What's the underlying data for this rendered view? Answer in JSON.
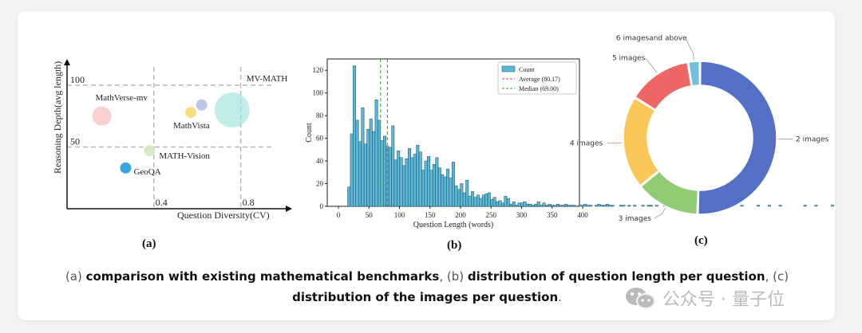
{
  "chart_data": [
    {
      "type": "scatter",
      "panel_label": "(a)",
      "xlabel": "Question Diversity(CV)",
      "ylabel": "Reasoning Depth(avg length)",
      "x_ticks": [
        "0.4",
        "0.8"
      ],
      "y_ticks": [
        "50",
        "100"
      ],
      "points": [
        {
          "name": "MathVerse-mv",
          "x": 0.16,
          "y": 75,
          "color": "#f7c6c7",
          "opacity": 0.8
        },
        {
          "name": "MathVista",
          "x": 0.57,
          "y": 78,
          "color": "#f6d96b",
          "opacity": 0.85
        },
        {
          "name": "",
          "x": 0.62,
          "y": 84,
          "color": "#b7c0e8",
          "opacity": 0.9
        },
        {
          "name": "MV-MATH",
          "x": 0.76,
          "y": 80,
          "color": "#9fe3dc",
          "opacity": 0.65
        },
        {
          "name": "MATH-Vision",
          "x": 0.38,
          "y": 47,
          "color": "#cfe9bf",
          "opacity": 0.9
        },
        {
          "name": "GeoQA",
          "x": 0.27,
          "y": 33,
          "color": "#2aa1dc",
          "opacity": 0.95
        }
      ]
    },
    {
      "type": "bar",
      "panel_label": "(b)",
      "xlabel": "Question Length (words)",
      "ylabel": "Count",
      "xlim": [
        0,
        400
      ],
      "ylim": [
        0,
        130
      ],
      "x_ticks": [
        "0",
        "50",
        "100",
        "150",
        "200",
        "250",
        "300",
        "350",
        "400"
      ],
      "y_ticks": [
        "0",
        "20",
        "40",
        "60",
        "80",
        "100",
        "120"
      ],
      "legend_position": "top-right",
      "legend": [
        {
          "label": "Count",
          "kind": "patch",
          "color": "#5bb7d6"
        },
        {
          "label": "Average (80.17)",
          "kind": "dashed",
          "color": "#e0312b"
        },
        {
          "label": "Median (69.00)",
          "kind": "dashed",
          "color": "#2e9e3a"
        }
      ],
      "average": 80.17,
      "median": 69.0,
      "bin_start": 15,
      "bin_width": 4.5,
      "values": [
        17,
        64,
        124,
        76,
        57,
        87,
        55,
        68,
        77,
        66,
        94,
        76,
        58,
        62,
        53,
        52,
        71,
        41,
        49,
        43,
        36,
        42,
        51,
        43,
        46,
        54,
        48,
        32,
        40,
        44,
        32,
        37,
        43,
        34,
        28,
        26,
        33,
        25,
        39,
        18,
        15,
        20,
        12,
        23,
        9,
        13,
        8,
        10,
        7,
        10,
        11,
        12,
        6,
        8,
        4,
        5,
        3,
        9,
        7,
        2,
        4,
        1,
        3,
        3,
        4,
        2,
        2,
        1,
        2,
        4,
        1,
        3,
        1,
        2,
        1,
        1,
        2,
        1,
        1,
        2,
        1,
        1,
        1,
        0,
        1,
        1,
        2,
        1,
        1,
        0,
        1,
        2,
        1,
        1,
        2,
        1,
        1,
        0,
        0,
        1,
        1,
        0,
        1,
        0,
        1,
        0,
        0,
        1,
        0,
        1,
        1,
        0,
        1,
        0,
        0,
        1,
        0,
        0,
        1,
        0,
        0,
        1,
        0,
        0,
        1,
        0,
        1,
        0,
        0,
        1,
        0,
        0,
        1,
        0,
        0,
        0,
        1,
        0,
        1,
        0,
        0,
        0,
        0,
        1,
        0,
        0,
        0,
        0,
        0,
        1,
        0,
        0,
        0,
        1,
        0,
        0,
        0,
        1,
        0,
        0,
        0,
        0,
        0,
        0,
        0,
        0,
        1,
        0,
        0,
        0,
        1,
        0,
        0,
        0,
        0,
        0,
        1
      ]
    },
    {
      "type": "pie",
      "panel_label": "(c)",
      "donut": true,
      "slices": [
        {
          "label": "2 images",
          "value": 50.0,
          "color": "#5470c6"
        },
        {
          "label": "3 images",
          "value": 13.5,
          "color": "#91cc75"
        },
        {
          "label": "4 images",
          "value": 19.5,
          "color": "#fac858"
        },
        {
          "label": "5 images",
          "value": 13.5,
          "color": "#ee6666"
        },
        {
          "label": "6 imagesand above",
          "value": 2.5,
          "color": "#73c0de"
        }
      ]
    }
  ],
  "caption": {
    "a_prefix": "(a) ",
    "a_text": "comparison with existing mathematical benchmarks",
    "b_prefix": ", (b) ",
    "b_text": "distribution of question length per question",
    "c_prefix": ", (c) ",
    "c_text": "distribution of the images per question",
    "end": "."
  },
  "watermark": {
    "icon": "wechat-icon",
    "text": "公众号 · 量子位"
  }
}
